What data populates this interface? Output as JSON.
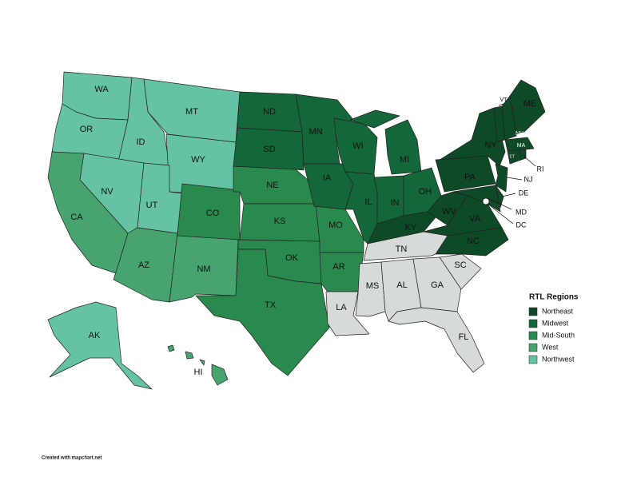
{
  "map": {
    "states": [
      {
        "label": "WA",
        "region": "Northwest"
      },
      {
        "label": "OR",
        "region": "Northwest"
      },
      {
        "label": "ID",
        "region": "Northwest"
      },
      {
        "label": "MT",
        "region": "Northwest"
      },
      {
        "label": "WY",
        "region": "Northwest"
      },
      {
        "label": "NV",
        "region": "Northwest"
      },
      {
        "label": "UT",
        "region": "Northwest"
      },
      {
        "label": "AK",
        "region": "Northwest"
      },
      {
        "label": "CA",
        "region": "West"
      },
      {
        "label": "AZ",
        "region": "West"
      },
      {
        "label": "NM",
        "region": "West"
      },
      {
        "label": "HI",
        "region": "West"
      },
      {
        "label": "CO",
        "region": "Mid-South"
      },
      {
        "label": "NE",
        "region": "Mid-South"
      },
      {
        "label": "KS",
        "region": "Mid-South"
      },
      {
        "label": "OK",
        "region": "Mid-South"
      },
      {
        "label": "TX",
        "region": "Mid-South"
      },
      {
        "label": "MO",
        "region": "Mid-South"
      },
      {
        "label": "AR",
        "region": "Mid-South"
      },
      {
        "label": "ND",
        "region": "Midwest"
      },
      {
        "label": "SD",
        "region": "Midwest"
      },
      {
        "label": "MN",
        "region": "Midwest"
      },
      {
        "label": "IA",
        "region": "Midwest"
      },
      {
        "label": "WI",
        "region": "Midwest"
      },
      {
        "label": "IL",
        "region": "Midwest"
      },
      {
        "label": "IN",
        "region": "Midwest"
      },
      {
        "label": "MI",
        "region": "Midwest"
      },
      {
        "label": "OH",
        "region": "Midwest"
      },
      {
        "label": "KY",
        "region": "Northeast"
      },
      {
        "label": "WV",
        "region": "Northeast"
      },
      {
        "label": "VA",
        "region": "Northeast"
      },
      {
        "label": "NC",
        "region": "Northeast"
      },
      {
        "label": "PA",
        "region": "Northeast"
      },
      {
        "label": "NY",
        "region": "Northeast"
      },
      {
        "label": "MD",
        "region": "Northeast"
      },
      {
        "label": "DE",
        "region": "Northeast"
      },
      {
        "label": "NJ",
        "region": "Northeast"
      },
      {
        "label": "VT",
        "region": "Northeast"
      },
      {
        "label": "NH",
        "region": "Northeast"
      },
      {
        "label": "ME",
        "region": "Northeast"
      },
      {
        "label": "MA",
        "region": "Northeast"
      },
      {
        "label": "CT",
        "region": "Northeast"
      },
      {
        "label": "RI",
        "region": "Northeast"
      },
      {
        "label": "DC",
        "region": "Northeast"
      },
      {
        "label": "TN",
        "region": null
      },
      {
        "label": "MS",
        "region": null
      },
      {
        "label": "AL",
        "region": null
      },
      {
        "label": "GA",
        "region": null
      },
      {
        "label": "SC",
        "region": null
      },
      {
        "label": "FL",
        "region": null
      },
      {
        "label": "LA",
        "region": null
      }
    ],
    "unassigned_color": "#d6dada"
  },
  "legend": {
    "title": "RTL Regions",
    "items": [
      {
        "label": "Northeast",
        "color": "#0e4a27"
      },
      {
        "label": "Midwest",
        "color": "#13673a"
      },
      {
        "label": "Mid-South",
        "color": "#2a8a4e"
      },
      {
        "label": "West",
        "color": "#47a46f"
      },
      {
        "label": "Northwest",
        "color": "#66c2a4"
      }
    ]
  },
  "footer": "Created with mapchart.net"
}
